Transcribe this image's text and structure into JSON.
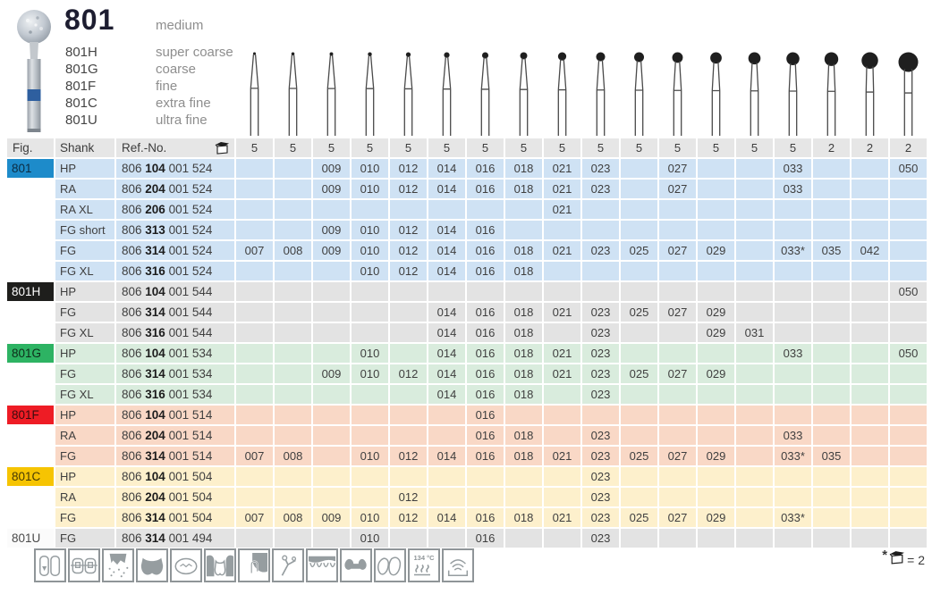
{
  "header": {
    "product_number": "801",
    "product_grit": "medium",
    "variants": [
      {
        "code": "801H",
        "grit": "super coarse"
      },
      {
        "code": "801G",
        "grit": "coarse"
      },
      {
        "code": "801F",
        "grit": "fine"
      },
      {
        "code": "801C",
        "grit": "extra fine"
      },
      {
        "code": "801U",
        "grit": "ultra fine"
      }
    ]
  },
  "table": {
    "col_fig": "Fig.",
    "col_shank": "Shank",
    "col_ref": "Ref.-No.",
    "sizes": [
      "007",
      "008",
      "009",
      "010",
      "012",
      "014",
      "016",
      "018",
      "021",
      "023",
      "025",
      "027",
      "029",
      "031",
      "033",
      "035",
      "042",
      "050"
    ],
    "pack_qty": [
      "5",
      "5",
      "5",
      "5",
      "5",
      "5",
      "5",
      "5",
      "5",
      "5",
      "5",
      "5",
      "5",
      "5",
      "5",
      "2",
      "2",
      "2"
    ],
    "groups": [
      {
        "fig": "801",
        "chip_bg": "#1d8bca",
        "chip_color": "#0c2c42",
        "row_bg": "#cfe2f4",
        "rows": [
          {
            "shank": "HP",
            "ref": [
              "806",
              "104",
              "001",
              "524"
            ],
            "cells": [
              "",
              "",
              "009",
              "010",
              "012",
              "014",
              "016",
              "018",
              "021",
              "023",
              "",
              "027",
              "",
              "",
              "033",
              "",
              "",
              "050"
            ]
          },
          {
            "shank": "RA",
            "ref": [
              "806",
              "204",
              "001",
              "524"
            ],
            "cells": [
              "",
              "",
              "009",
              "010",
              "012",
              "014",
              "016",
              "018",
              "021",
              "023",
              "",
              "027",
              "",
              "",
              "033",
              "",
              "",
              ""
            ]
          },
          {
            "shank": "RA XL",
            "ref": [
              "806",
              "206",
              "001",
              "524"
            ],
            "cells": [
              "",
              "",
              "",
              "",
              "",
              "",
              "",
              "",
              "021",
              "",
              "",
              "",
              "",
              "",
              "",
              "",
              "",
              ""
            ]
          },
          {
            "shank": "FG short",
            "ref": [
              "806",
              "313",
              "001",
              "524"
            ],
            "cells": [
              "",
              "",
              "009",
              "010",
              "012",
              "014",
              "016",
              "",
              "",
              "",
              "",
              "",
              "",
              "",
              "",
              "",
              "",
              ""
            ]
          },
          {
            "shank": "FG",
            "ref": [
              "806",
              "314",
              "001",
              "524"
            ],
            "cells": [
              "007",
              "008",
              "009",
              "010",
              "012",
              "014",
              "016",
              "018",
              "021",
              "023",
              "025",
              "027",
              "029",
              "",
              "033*",
              "035",
              "042",
              ""
            ]
          },
          {
            "shank": "FG XL",
            "ref": [
              "806",
              "316",
              "001",
              "524"
            ],
            "cells": [
              "",
              "",
              "",
              "010",
              "012",
              "014",
              "016",
              "018",
              "",
              "",
              "",
              "",
              "",
              "",
              "",
              "",
              "",
              ""
            ]
          }
        ]
      },
      {
        "fig": "801H",
        "chip_bg": "#1e1e1c",
        "chip_color": "#ffffff",
        "row_bg": "#e3e3e3",
        "rows": [
          {
            "shank": "HP",
            "ref": [
              "806",
              "104",
              "001",
              "544"
            ],
            "cells": [
              "",
              "",
              "",
              "",
              "",
              "",
              "",
              "",
              "",
              "",
              "",
              "",
              "",
              "",
              "",
              "",
              "",
              "050"
            ]
          },
          {
            "shank": "FG",
            "ref": [
              "806",
              "314",
              "001",
              "544"
            ],
            "cells": [
              "",
              "",
              "",
              "",
              "",
              "014",
              "016",
              "018",
              "021",
              "023",
              "025",
              "027",
              "029",
              "",
              "",
              "",
              "",
              ""
            ]
          },
          {
            "shank": "FG XL",
            "ref": [
              "806",
              "316",
              "001",
              "544"
            ],
            "cells": [
              "",
              "",
              "",
              "",
              "",
              "014",
              "016",
              "018",
              "",
              "023",
              "",
              "",
              "029",
              "031",
              "",
              "",
              "",
              ""
            ]
          }
        ]
      },
      {
        "fig": "801G",
        "chip_bg": "#2db363",
        "chip_color": "#0e2c1a",
        "row_bg": "#d9ecdd",
        "rows": [
          {
            "shank": "HP",
            "ref": [
              "806",
              "104",
              "001",
              "534"
            ],
            "cells": [
              "",
              "",
              "",
              "010",
              "",
              "014",
              "016",
              "018",
              "021",
              "023",
              "",
              "",
              "",
              "",
              "033",
              "",
              "",
              "050"
            ]
          },
          {
            "shank": "FG",
            "ref": [
              "806",
              "314",
              "001",
              "534"
            ],
            "cells": [
              "",
              "",
              "009",
              "010",
              "012",
              "014",
              "016",
              "018",
              "021",
              "023",
              "025",
              "027",
              "029",
              "",
              "",
              "",
              "",
              ""
            ]
          },
          {
            "shank": "FG XL",
            "ref": [
              "806",
              "316",
              "001",
              "534"
            ],
            "cells": [
              "",
              "",
              "",
              "",
              "",
              "014",
              "016",
              "018",
              "",
              "023",
              "",
              "",
              "",
              "",
              "",
              "",
              "",
              ""
            ]
          }
        ]
      },
      {
        "fig": "801F",
        "chip_bg": "#ee1c25",
        "chip_color": "#3b0c0e",
        "row_bg": "#f9d8c6",
        "rows": [
          {
            "shank": "HP",
            "ref": [
              "806",
              "104",
              "001",
              "514"
            ],
            "cells": [
              "",
              "",
              "",
              "",
              "",
              "",
              "016",
              "",
              "",
              "",
              "",
              "",
              "",
              "",
              "",
              "",
              "",
              ""
            ]
          },
          {
            "shank": "RA",
            "ref": [
              "806",
              "204",
              "001",
              "514"
            ],
            "cells": [
              "",
              "",
              "",
              "",
              "",
              "",
              "016",
              "018",
              "",
              "023",
              "",
              "",
              "",
              "",
              "033",
              "",
              "",
              ""
            ]
          },
          {
            "shank": "FG",
            "ref": [
              "806",
              "314",
              "001",
              "514"
            ],
            "cells": [
              "007",
              "008",
              "",
              "010",
              "012",
              "014",
              "016",
              "018",
              "021",
              "023",
              "025",
              "027",
              "029",
              "",
              "033*",
              "035",
              "",
              ""
            ]
          }
        ]
      },
      {
        "fig": "801C",
        "chip_bg": "#f6c402",
        "chip_color": "#463a05",
        "row_bg": "#fdf0cc",
        "rows": [
          {
            "shank": "HP",
            "ref": [
              "806",
              "104",
              "001",
              "504"
            ],
            "cells": [
              "",
              "",
              "",
              "",
              "",
              "",
              "",
              "",
              "",
              "023",
              "",
              "",
              "",
              "",
              "",
              "",
              "",
              ""
            ]
          },
          {
            "shank": "RA",
            "ref": [
              "806",
              "204",
              "001",
              "504"
            ],
            "cells": [
              "",
              "",
              "",
              "",
              "012",
              "",
              "",
              "",
              "",
              "023",
              "",
              "",
              "",
              "",
              "",
              "",
              "",
              ""
            ]
          },
          {
            "shank": "FG",
            "ref": [
              "806",
              "314",
              "001",
              "504"
            ],
            "cells": [
              "007",
              "008",
              "009",
              "010",
              "012",
              "014",
              "016",
              "018",
              "021",
              "023",
              "025",
              "027",
              "029",
              "",
              "033*",
              "",
              "",
              ""
            ]
          }
        ]
      },
      {
        "fig": "801U",
        "chip_bg": "#fbfbfb",
        "chip_color": "#4a4a4a",
        "row_bg": "#e3e3e3",
        "rows": [
          {
            "shank": "FG",
            "ref": [
              "806",
              "314",
              "001",
              "494"
            ],
            "cells": [
              "",
              "",
              "",
              "010",
              "",
              "",
              "016",
              "",
              "",
              "023",
              "",
              "",
              "",
              "",
              "",
              "",
              "",
              ""
            ]
          }
        ]
      }
    ]
  },
  "footer_icons": [
    {
      "name": "anterior-teeth-icon"
    },
    {
      "name": "orthodontic-brackets-icon"
    },
    {
      "name": "root-perio-icon"
    },
    {
      "name": "cavity-preparation-icon"
    },
    {
      "name": "occlusal-surface-icon"
    },
    {
      "name": "crown-preparation-icon"
    },
    {
      "name": "filling-removal-icon"
    },
    {
      "name": "clasp-instrument-icon"
    },
    {
      "name": "veneer-teeth-row-icon"
    },
    {
      "name": "bridge-pontic-icon"
    },
    {
      "name": "denture-teeth-icon"
    },
    {
      "name": "autoclave-134c-icon",
      "label": "134 °C"
    },
    {
      "name": "thermal-disinfector-icon"
    }
  ],
  "footnote": {
    "star": "*",
    "text": "= 2"
  }
}
